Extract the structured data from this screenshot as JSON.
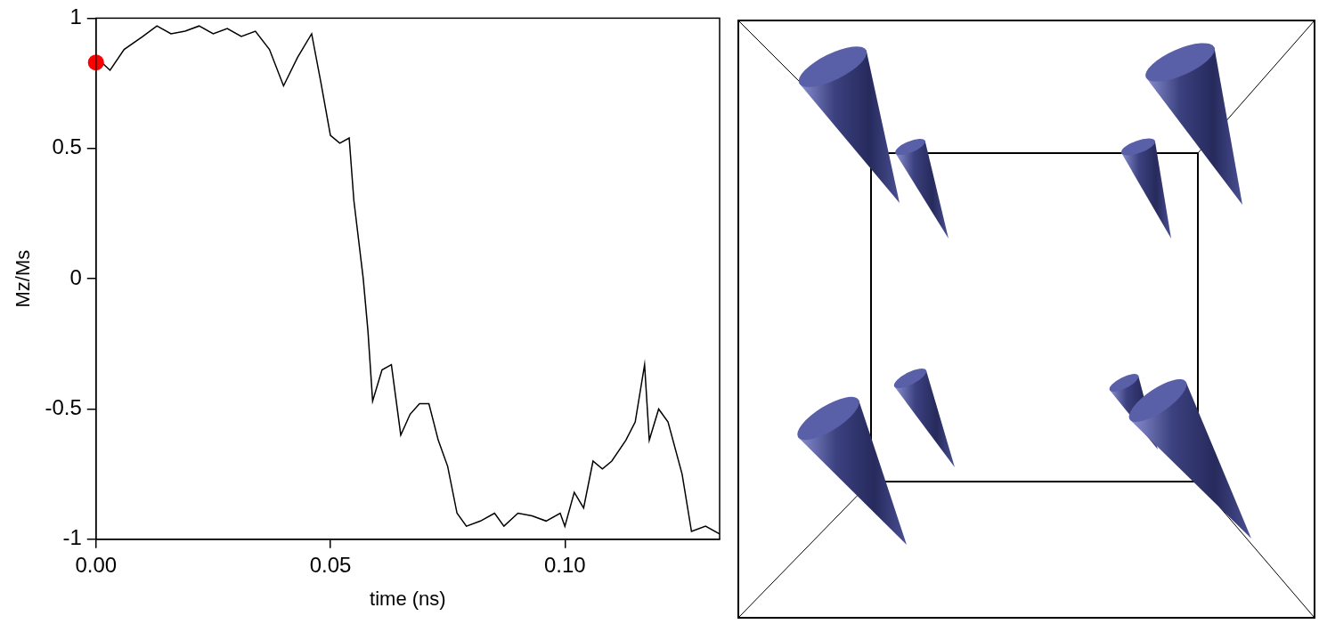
{
  "chart_data": {
    "type": "line",
    "x_label": "time (ns)",
    "y_label": "Mz/Ms",
    "xlim": [
      0,
      0.133
    ],
    "xticks": [
      {
        "value": 0,
        "label": "0.00"
      },
      {
        "value": 0.05,
        "label": "0.05"
      },
      {
        "value": 0.1,
        "label": "0.10"
      }
    ],
    "ylim": [
      -1,
      1
    ],
    "yticks": [
      -1,
      -0.5,
      0,
      0.5,
      1
    ],
    "grid": false,
    "series": [
      {
        "type": "line",
        "color": "#000000",
        "line_style": "solid",
        "x": [
          0,
          0.003,
          0.006,
          0.01,
          0.013,
          0.016,
          0.019,
          0.022,
          0.025,
          0.028,
          0.031,
          0.034,
          0.037,
          0.04,
          0.043,
          0.046,
          0.048,
          0.05,
          0.052,
          0.054,
          0.055,
          0.057,
          0.058,
          0.059,
          0.061,
          0.063,
          0.065,
          0.067,
          0.069,
          0.071,
          0.073,
          0.075,
          0.077,
          0.079,
          0.082,
          0.085,
          0.087,
          0.09,
          0.093,
          0.096,
          0.099,
          0.1,
          0.102,
          0.104,
          0.106,
          0.108,
          0.11,
          0.113,
          0.115,
          0.117,
          0.118,
          0.12,
          0.122,
          0.125,
          0.127,
          0.13,
          0.133
        ],
        "values": [
          0.85,
          0.8,
          0.88,
          0.93,
          0.97,
          0.94,
          0.95,
          0.97,
          0.94,
          0.96,
          0.93,
          0.95,
          0.88,
          0.74,
          0.85,
          0.94,
          0.75,
          0.55,
          0.52,
          0.54,
          0.3,
          0.0,
          -0.2,
          -0.47,
          -0.35,
          -0.33,
          -0.6,
          -0.52,
          -0.48,
          -0.48,
          -0.62,
          -0.72,
          -0.9,
          -0.95,
          -0.93,
          -0.9,
          -0.95,
          -0.9,
          -0.91,
          -0.93,
          -0.9,
          -0.95,
          -0.82,
          -0.88,
          -0.7,
          -0.73,
          -0.7,
          -0.62,
          -0.55,
          -0.33,
          -0.62,
          -0.5,
          -0.55,
          -0.75,
          -0.97,
          -0.95,
          -0.98
        ]
      },
      {
        "type": "scatter",
        "color": "#ff0000",
        "marker": "circle",
        "x": [
          0
        ],
        "values": [
          0.83
        ]
      }
    ]
  }
}
